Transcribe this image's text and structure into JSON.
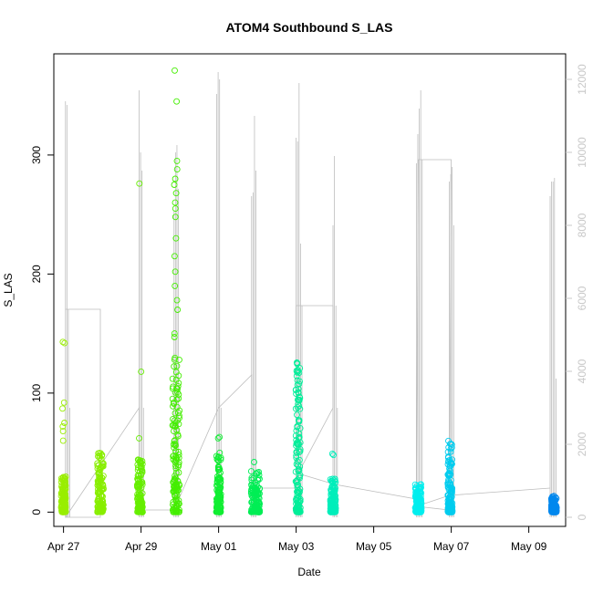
{
  "chart_data": {
    "type": "scatter",
    "title": "ATOM4 Southbound S_LAS",
    "xlabel": "Date",
    "ylabel": "S_LAS",
    "x_range_days": [
      -0.25,
      12.95
    ],
    "ylim": [
      -12,
      385
    ],
    "y2lim": [
      -250,
      12700
    ],
    "x_ticks": [
      {
        "day": 0,
        "label": "Apr 27"
      },
      {
        "day": 2,
        "label": "Apr 29"
      },
      {
        "day": 4,
        "label": "May 01"
      },
      {
        "day": 6,
        "label": "May 03"
      },
      {
        "day": 8,
        "label": "May 05"
      },
      {
        "day": 10,
        "label": "May 07"
      },
      {
        "day": 12,
        "label": "May 09"
      }
    ],
    "y_ticks": [
      0,
      100,
      200,
      300
    ],
    "y2_ticks": [
      0,
      2000,
      4000,
      6000,
      8000,
      10000,
      12000
    ],
    "grid": false,
    "legend": "none",
    "colors": {
      "series_line": "#bdbdbd",
      "right_axis": "#c8c8c8"
    },
    "clusters": [
      {
        "day": 0.0,
        "width": 0.12,
        "base_max": 30,
        "outliers": [
          143,
          142,
          92,
          87,
          75,
          72,
          68,
          60
        ],
        "color": "#99ee00"
      },
      {
        "day": 0.95,
        "width": 0.16,
        "base_max": 50,
        "outliers": [],
        "color": "#88ee00"
      },
      {
        "day": 1.97,
        "width": 0.14,
        "base_max": 45,
        "outliers": [
          276,
          118,
          62
        ],
        "color": "#66ee00"
      },
      {
        "day": 2.9,
        "width": 0.18,
        "base_max": 130,
        "outliers": [
          371,
          345,
          295,
          288,
          280,
          275,
          268,
          260,
          255,
          248,
          230,
          215,
          202,
          190,
          178,
          170,
          150,
          147
        ],
        "color": "#44ee00"
      },
      {
        "day": 4.0,
        "width": 0.12,
        "base_max": 50,
        "outliers": [
          63,
          62
        ],
        "color": "#11ee33"
      },
      {
        "day": 4.95,
        "width": 0.22,
        "base_max": 35,
        "outliers": [
          42
        ],
        "color": "#00ee55"
      },
      {
        "day": 6.05,
        "width": 0.12,
        "base_max": 130,
        "outliers": [],
        "color": "#00ee99"
      },
      {
        "day": 6.95,
        "width": 0.14,
        "base_max": 28,
        "outliers": [
          49,
          48
        ],
        "color": "#00eebb"
      },
      {
        "day": 9.15,
        "width": 0.16,
        "base_max": 24,
        "outliers": [],
        "color": "#00eeee"
      },
      {
        "day": 9.97,
        "width": 0.12,
        "base_max": 60,
        "outliers": [],
        "color": "#00ccee"
      },
      {
        "day": 12.65,
        "width": 0.14,
        "base_max": 14,
        "outliers": [],
        "color": "#0088ee"
      }
    ],
    "secondary_spikes": [
      {
        "day": 0.05,
        "values": [
          11400,
          11300,
          5700,
          3000
        ]
      },
      {
        "day": 1.95,
        "values": [
          11700,
          10000,
          9500,
          3000
        ]
      },
      {
        "day": 2.85,
        "values": [
          8400,
          10000,
          10200,
          9000
        ]
      },
      {
        "day": 3.95,
        "values": [
          11600,
          12200,
          12000,
          3000
        ]
      },
      {
        "day": 4.85,
        "values": [
          8800,
          8900,
          11000,
          9500
        ]
      },
      {
        "day": 6.0,
        "values": [
          10400,
          10300,
          11900,
          7500,
          5800
        ]
      },
      {
        "day": 6.95,
        "values": [
          8000,
          9900,
          5800,
          3000
        ]
      },
      {
        "day": 9.1,
        "values": [
          9700,
          10500,
          11200,
          11700,
          9800
        ]
      },
      {
        "day": 9.95,
        "values": [
          9200,
          9400,
          9600,
          8000
        ]
      },
      {
        "day": 12.55,
        "values": [
          8800,
          9200,
          9200,
          9300,
          3800
        ]
      }
    ],
    "secondary_path": [
      [
        0.05,
        5700
      ],
      [
        0.95,
        5700
      ],
      [
        0.95,
        0
      ],
      [
        0.05,
        0
      ],
      [
        1.95,
        3000
      ],
      [
        1.95,
        200
      ],
      [
        2.85,
        200
      ],
      [
        2.85,
        4500
      ],
      [
        2.85,
        200
      ],
      [
        4.0,
        3000
      ],
      [
        4.85,
        3900
      ],
      [
        4.85,
        800
      ],
      [
        6.0,
        800
      ],
      [
        6.0,
        5800
      ],
      [
        6.95,
        5800
      ],
      [
        6.95,
        3000
      ],
      [
        6.05,
        1200
      ],
      [
        7.0,
        900
      ],
      [
        9.1,
        500
      ],
      [
        9.15,
        9800
      ],
      [
        10.0,
        9800
      ],
      [
        9.95,
        200
      ],
      [
        9.1,
        300
      ],
      [
        9.95,
        600
      ],
      [
        12.55,
        800
      ]
    ]
  }
}
